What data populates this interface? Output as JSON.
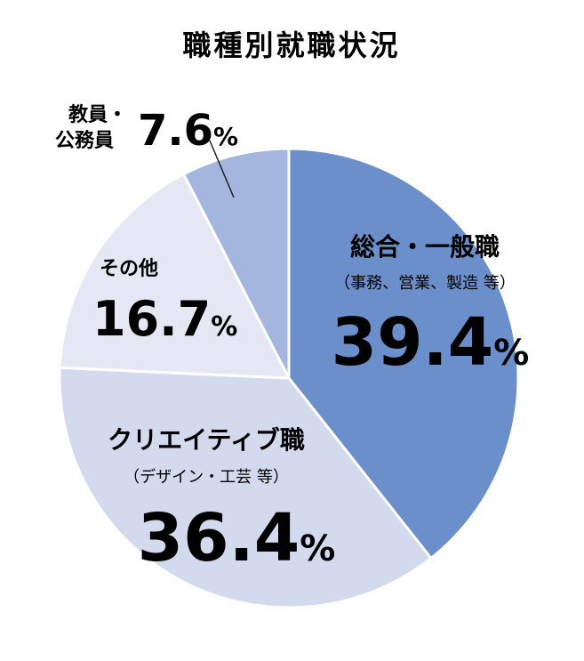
{
  "chart_data": {
    "type": "pie",
    "title": "職種別就職状況",
    "slices": [
      {
        "label": "総合・一般職",
        "sublabel": "（事務、営業、製造 等）",
        "value": 39.4,
        "color": "#6b8fca"
      },
      {
        "label": "クリエイティブ職",
        "sublabel": "（デザイン・工芸 等）",
        "value": 36.4,
        "color": "#d3daee"
      },
      {
        "label": "その他",
        "sublabel": "",
        "value": 16.7,
        "color": "#e5e8f4"
      },
      {
        "label": "教員・公務員",
        "label_lines": [
          "教員・",
          "公務員"
        ],
        "sublabel": "",
        "value": 7.6,
        "color": "#a5b6de"
      }
    ],
    "unit": "%"
  }
}
